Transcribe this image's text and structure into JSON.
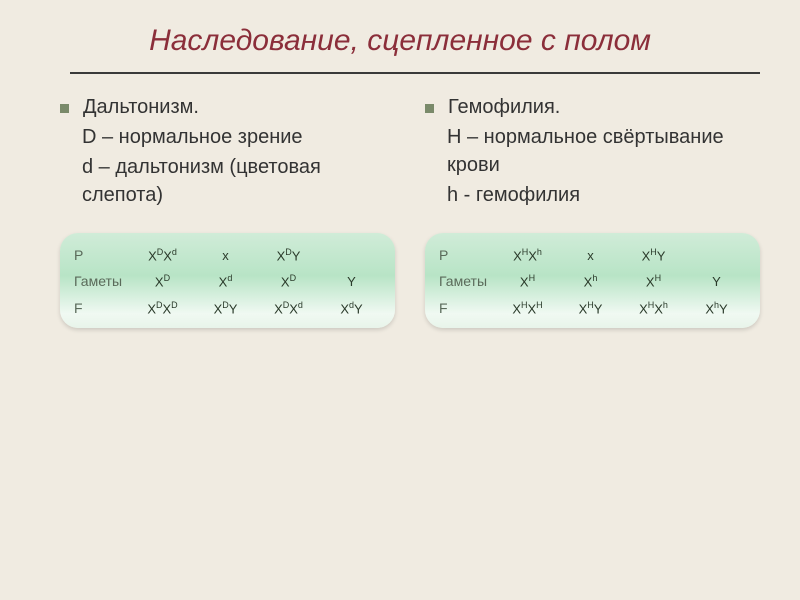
{
  "title": "Наследование, сцепленное с полом",
  "left": {
    "topic": "Дальтонизм.",
    "line1": "D – нормальное зрение",
    "line2": "d – дальтонизм (цветовая слепота)"
  },
  "right": {
    "topic": "Гемофилия.",
    "line1": "H – нормальное свёртывание крови",
    "line2": "h - гемофилия"
  },
  "card_left": {
    "row1_label": "P",
    "row1": [
      "X<sup>D</sup>X<sup>d</sup>",
      "x",
      "X<sup>D</sup>Y",
      ""
    ],
    "row2_label": "Гаметы",
    "row2": [
      "X<sup>D</sup>",
      "X<sup>d</sup>",
      "X<sup>D</sup>",
      "Y"
    ],
    "row3_label": "F",
    "row3": [
      "X<sup>D</sup>X<sup>D</sup>",
      "X<sup>D</sup>Y",
      "X<sup>D</sup>X<sup>d</sup>",
      "X<sup>d</sup>Y"
    ]
  },
  "card_right": {
    "row1_label": "P",
    "row1": [
      "X<sup>H</sup>X<sup>h</sup>",
      "x",
      "X<sup>H</sup>Y",
      ""
    ],
    "row2_label": "Гаметы",
    "row2": [
      "X<sup>H</sup>",
      "X<sup>h</sup>",
      "X<sup>H</sup>",
      "Y"
    ],
    "row3_label": "F",
    "row3": [
      "X<sup>H</sup>X<sup>H</sup>",
      "X<sup>H</sup>Y",
      "X<sup>H</sup>X<sup>h</sup>",
      "X<sup>h</sup>Y"
    ]
  }
}
